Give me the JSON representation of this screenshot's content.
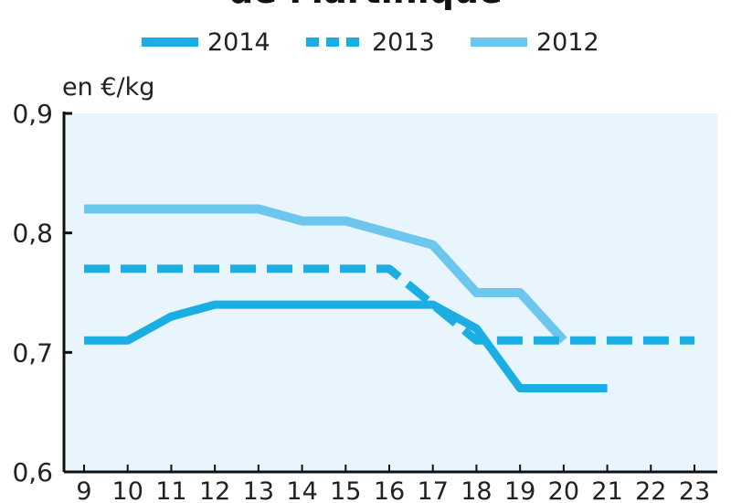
{
  "chart_data": {
    "type": "line",
    "title": "de Martinique",
    "ylabel": "en €/kg",
    "x": [
      9,
      10,
      11,
      12,
      13,
      14,
      15,
      16,
      17,
      18,
      19,
      20,
      21,
      22,
      23
    ],
    "xlim": [
      9,
      23
    ],
    "ylim": [
      0.6,
      0.9
    ],
    "yticks": [
      "0,6",
      "0,7",
      "0,8",
      "0,9"
    ],
    "grid": false,
    "legend_position": "top",
    "background_color": "#e8f5fc",
    "series": [
      {
        "name": "2014",
        "color": "#1aaee3",
        "style": "solid-thick",
        "points": [
          [
            9,
            0.71
          ],
          [
            10,
            0.71
          ],
          [
            11,
            0.73
          ],
          [
            12,
            0.74
          ],
          [
            13,
            0.74
          ],
          [
            14,
            0.74
          ],
          [
            15,
            0.74
          ],
          [
            16,
            0.74
          ],
          [
            17,
            0.74
          ],
          [
            18,
            0.72
          ],
          [
            19,
            0.67
          ],
          [
            20,
            0.67
          ],
          [
            21,
            0.67
          ]
        ]
      },
      {
        "name": "2013",
        "color": "#1aaee3",
        "style": "dashed",
        "points": [
          [
            9,
            0.77
          ],
          [
            10,
            0.77
          ],
          [
            11,
            0.77
          ],
          [
            12,
            0.77
          ],
          [
            13,
            0.77
          ],
          [
            14,
            0.77
          ],
          [
            15,
            0.77
          ],
          [
            16,
            0.77
          ],
          [
            17,
            0.74
          ],
          [
            18,
            0.71
          ],
          [
            19,
            0.71
          ],
          [
            20,
            0.71
          ],
          [
            21,
            0.71
          ],
          [
            22,
            0.71
          ],
          [
            23,
            0.71
          ]
        ]
      },
      {
        "name": "2012",
        "color": "#6cc6ee",
        "style": "solid",
        "points": [
          [
            9,
            0.82
          ],
          [
            10,
            0.82
          ],
          [
            11,
            0.82
          ],
          [
            12,
            0.82
          ],
          [
            13,
            0.82
          ],
          [
            14,
            0.81
          ],
          [
            15,
            0.81
          ],
          [
            16,
            0.8
          ],
          [
            17,
            0.79
          ],
          [
            18,
            0.75
          ],
          [
            19,
            0.75
          ],
          [
            20,
            0.71
          ]
        ]
      }
    ]
  }
}
